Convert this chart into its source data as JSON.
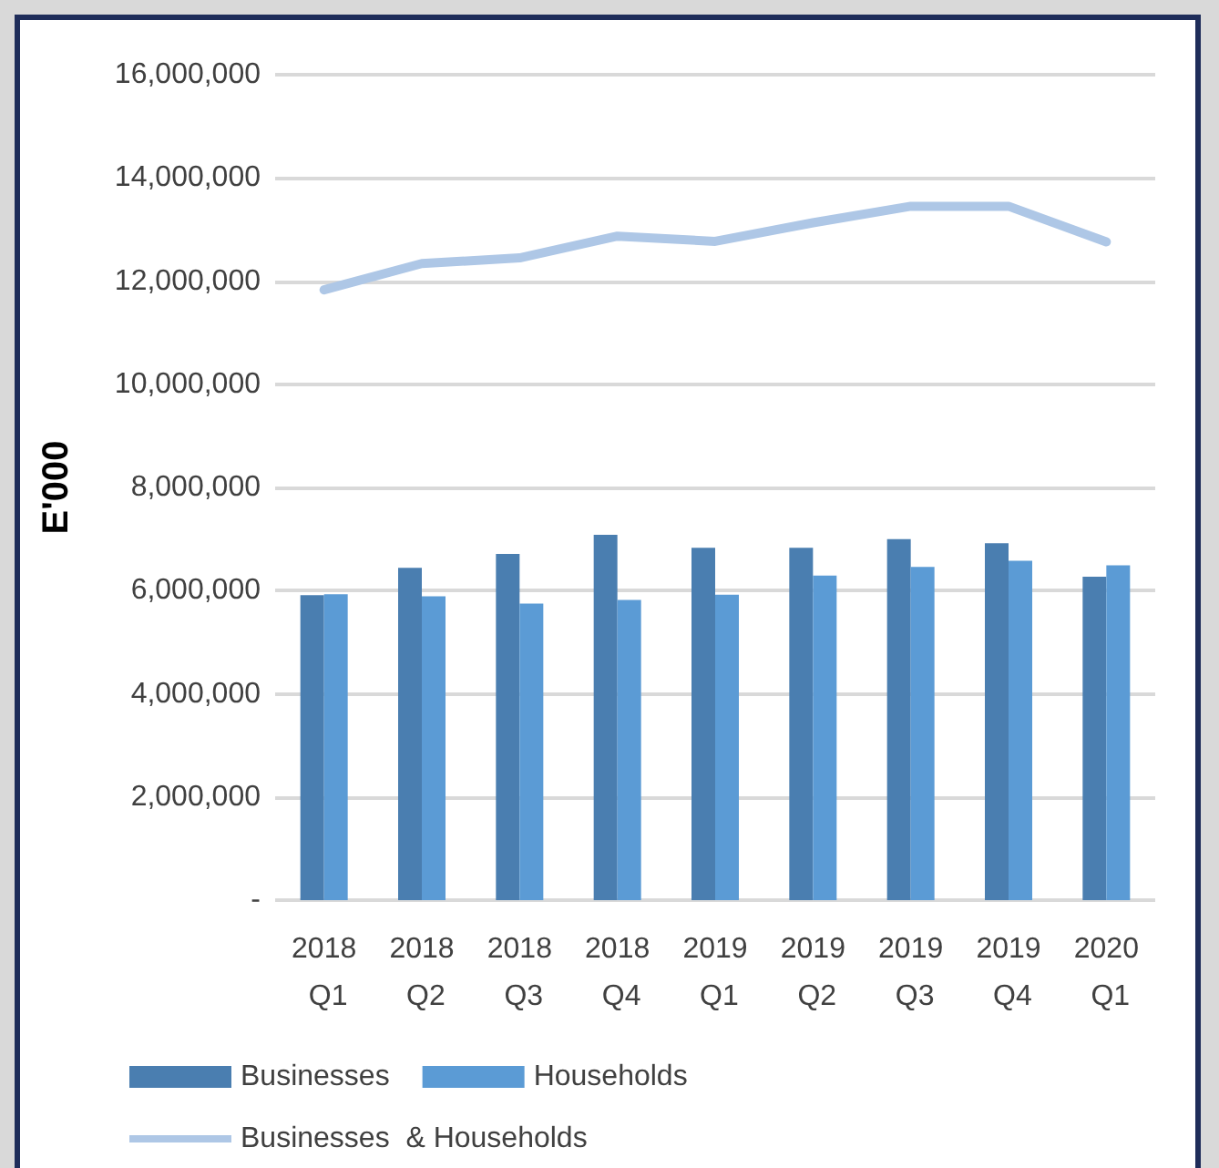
{
  "chart_data": {
    "type": "bar",
    "ylabel": "E'000",
    "categories": [
      "2018 Q1",
      "2018 Q2",
      "2018 Q3",
      "2018 Q4",
      "2019 Q1",
      "2019 Q2",
      "2019 Q3",
      "2019 Q4",
      "2020 Q1"
    ],
    "series": [
      {
        "name": "Businesses",
        "color": "#4a7eb0",
        "values": [
          5910000,
          6440000,
          6710000,
          7080000,
          6830000,
          6830000,
          7000000,
          6920000,
          6270000
        ]
      },
      {
        "name": "Households",
        "color": "#5b9bd5",
        "values": [
          5930000,
          5890000,
          5750000,
          5820000,
          5920000,
          6290000,
          6460000,
          6580000,
          6490000
        ]
      },
      {
        "name": "Businesses  & Households",
        "type": "line",
        "color": "#aec7e6",
        "values": [
          11830000,
          12340000,
          12450000,
          12870000,
          12770000,
          13130000,
          13450000,
          13450000,
          12760000
        ]
      }
    ],
    "ylim": [
      0,
      16000000
    ],
    "yticks": [
      {
        "value": 0,
        "label": "-"
      },
      {
        "value": 2000000,
        "label": "2,000,000"
      },
      {
        "value": 4000000,
        "label": "4,000,000"
      },
      {
        "value": 6000000,
        "label": "6,000,000"
      },
      {
        "value": 8000000,
        "label": "8,000,000"
      },
      {
        "value": 10000000,
        "label": "10,000,000"
      },
      {
        "value": 12000000,
        "label": "12,000,000"
      },
      {
        "value": 14000000,
        "label": "14,000,000"
      },
      {
        "value": 16000000,
        "label": "16,000,000"
      }
    ],
    "grid": "y",
    "legend": "bottom",
    "marker": "none",
    "line_style": "solid"
  }
}
